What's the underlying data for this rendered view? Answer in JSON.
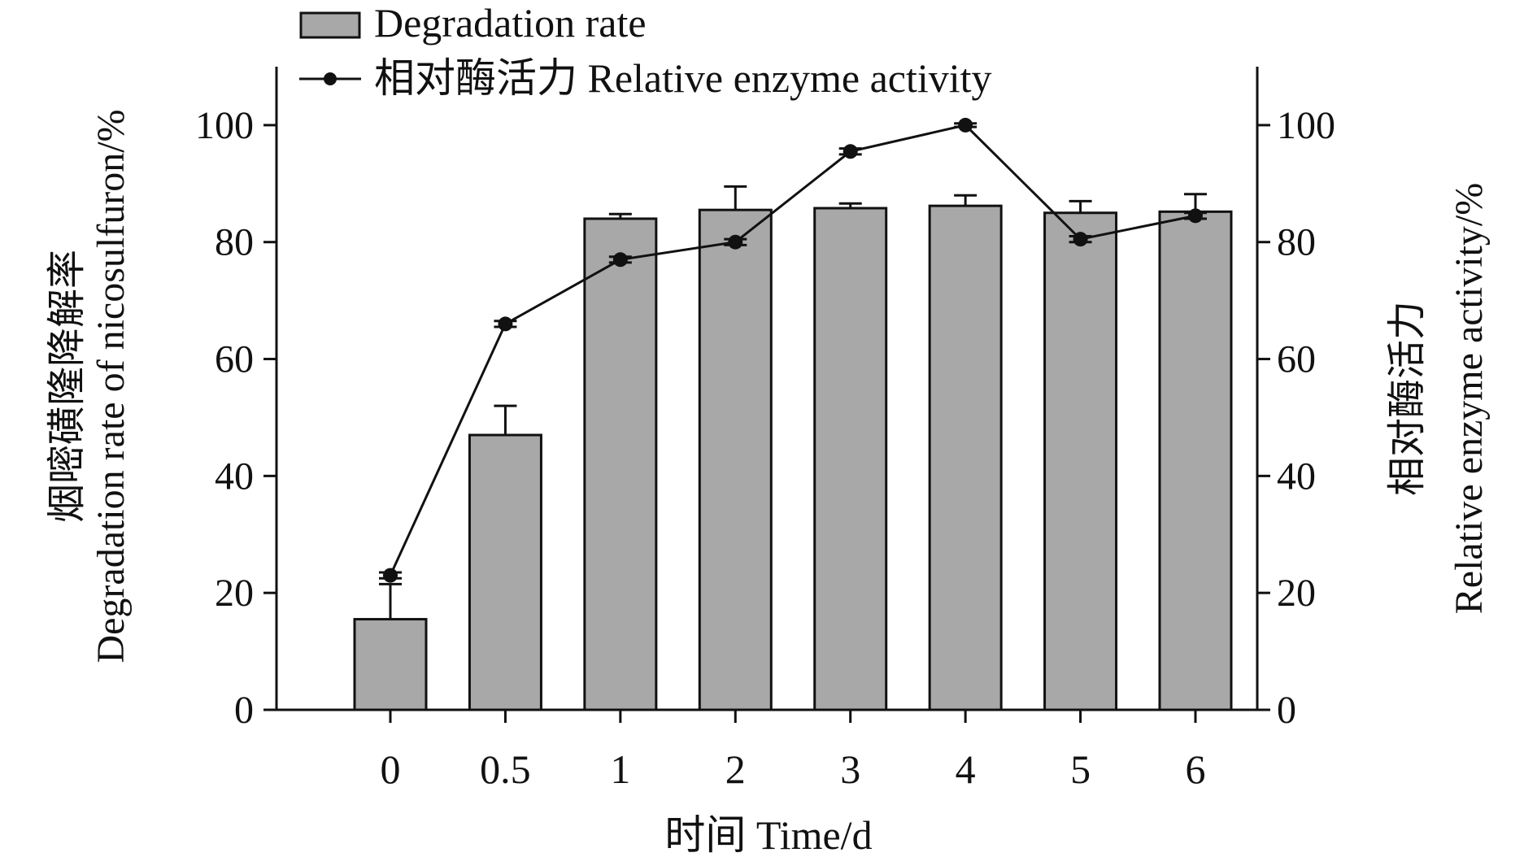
{
  "chart_data": {
    "type": "bar",
    "categories": [
      "0",
      "0.5",
      "1",
      "2",
      "3",
      "4",
      "5",
      "6"
    ],
    "xlabel": "时间 Time/d",
    "ylabel_left": [
      "烟嘧磺隆降解率",
      "Degradation rate of nicosulfuron/%"
    ],
    "ylabel_right": [
      "相对酶活力",
      "Relative enzyme activity/%"
    ],
    "ylim_left": [
      0,
      110
    ],
    "ylim_right": [
      0,
      110
    ],
    "yticks_left": [
      0,
      20,
      40,
      60,
      80,
      100
    ],
    "yticks_right": [
      0,
      20,
      40,
      60,
      80,
      100
    ],
    "legend_position": "top-left",
    "grid": false,
    "series": [
      {
        "name": "Degradation rate",
        "kind": "bar",
        "axis": "left",
        "color": "#a8a8a8",
        "values": [
          15.5,
          47.0,
          84.0,
          85.5,
          85.8,
          86.2,
          85.0,
          85.2
        ],
        "errors": [
          6.0,
          5.0,
          0.8,
          4.0,
          0.8,
          1.8,
          2.0,
          3.0
        ]
      },
      {
        "name": "相对酶活力 Relative enzyme activity",
        "kind": "line",
        "axis": "right",
        "color": "#111111",
        "values": [
          23.0,
          66.0,
          77.0,
          80.0,
          95.5,
          100.0,
          80.5,
          84.5
        ],
        "errors": [
          0.5,
          0.5,
          0.5,
          0.5,
          0.5,
          0.3,
          0.5,
          0.5
        ]
      }
    ]
  }
}
